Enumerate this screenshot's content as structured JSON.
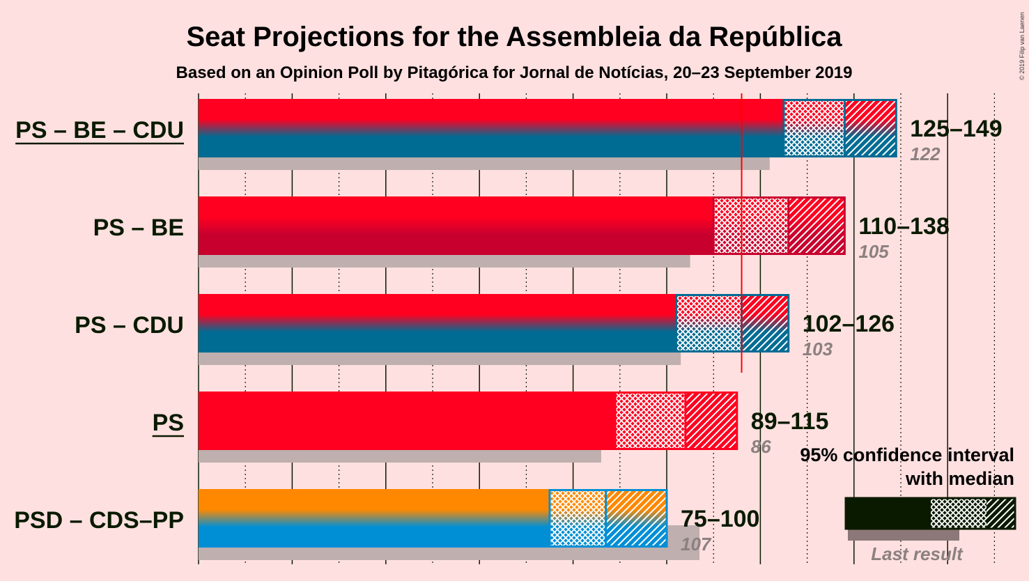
{
  "title": "Seat Projections for the Assembleia da República",
  "subtitle": "Based on an Opinion Poll by Pitagórica for Jornal de Notícias, 20–23 September 2019",
  "credit": "© 2019 Filip van Laenen",
  "majority": 116,
  "colors": {
    "background": "#FFE0E0",
    "text": "#0A1A00",
    "ps": "#FF0020",
    "be": "#C8002E",
    "cdu": "#006C94",
    "psd": "#FF8800",
    "cds": "#008FD5",
    "last_result": "#BFAFAF",
    "majority_line": "#FF0000"
  },
  "chart_data": {
    "type": "bar",
    "xlim": [
      0,
      175
    ],
    "categories": [
      "PS – BE – CDU",
      "PS – BE",
      "PS – CDU",
      "PS",
      "PSD – CDS–PP"
    ],
    "series": [
      {
        "label": "PS – BE – CDU",
        "underline": true,
        "low": 125,
        "median": 138,
        "high": 149,
        "range_label": "125–149",
        "last": 122,
        "last_label": "122",
        "top": "ps",
        "bottom": "cdu"
      },
      {
        "label": "PS – BE",
        "underline": false,
        "low": 110,
        "median": 126,
        "high": 138,
        "range_label": "110–138",
        "last": 105,
        "last_label": "105",
        "top": "ps",
        "bottom": "be"
      },
      {
        "label": "PS – CDU",
        "underline": false,
        "low": 102,
        "median": 116,
        "high": 126,
        "range_label": "102–126",
        "last": 103,
        "last_label": "103",
        "top": "ps",
        "bottom": "cdu"
      },
      {
        "label": "PS",
        "underline": true,
        "low": 89,
        "median": 104,
        "high": 115,
        "range_label": "89–115",
        "last": 86,
        "last_label": "86",
        "top": "ps",
        "bottom": "ps"
      },
      {
        "label": "PSD – CDS–PP",
        "underline": false,
        "low": 75,
        "median": 87,
        "high": 100,
        "range_label": "75–100",
        "last": 107,
        "last_label": "107",
        "top": "psd",
        "bottom": "cds"
      }
    ]
  },
  "legend": {
    "line1": "95% confidence interval",
    "line2": "with median",
    "last_result": "Last result"
  }
}
